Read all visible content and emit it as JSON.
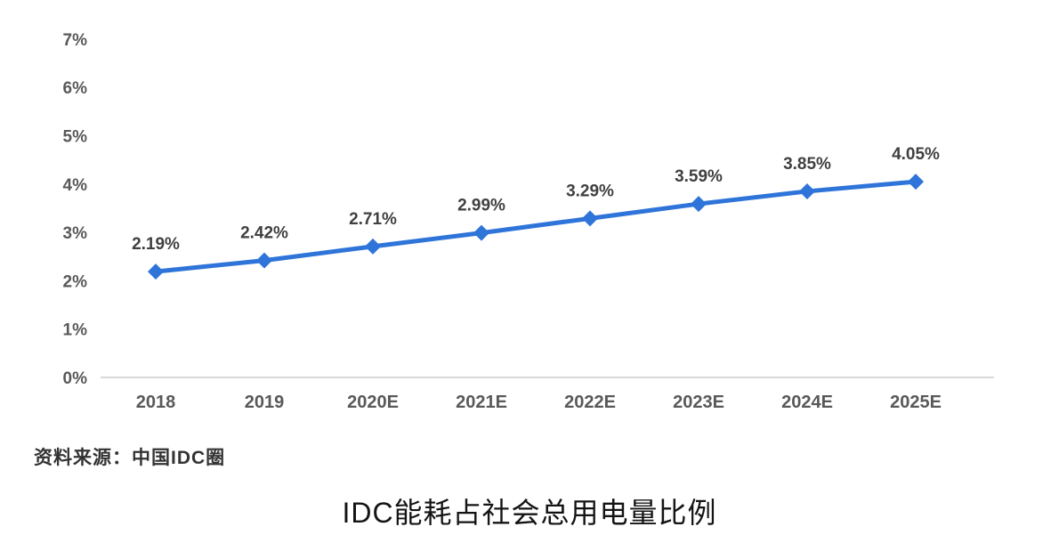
{
  "chart_data": {
    "type": "line",
    "title": "IDC能耗占社会总用电量比例",
    "source": "资料来源：中国IDC圈",
    "categories": [
      "2018",
      "2019",
      "2020E",
      "2021E",
      "2022E",
      "2023E",
      "2024E",
      "2025E"
    ],
    "series": [
      {
        "name": "IDC能耗占社会总用电量比例",
        "values": [
          2.19,
          2.42,
          2.71,
          2.99,
          3.29,
          3.59,
          3.85,
          4.05
        ]
      }
    ],
    "data_labels": [
      "2.19%",
      "2.42%",
      "2.71%",
      "2.99%",
      "3.29%",
      "3.59%",
      "3.85%",
      "4.05%"
    ],
    "ytick_labels": [
      "0%",
      "1%",
      "2%",
      "3%",
      "4%",
      "5%",
      "6%",
      "7%"
    ],
    "yticks": [
      0,
      1,
      2,
      3,
      4,
      5,
      6,
      7
    ],
    "ylim": [
      0,
      7
    ],
    "xlabel": "",
    "ylabel": "",
    "grid": false,
    "legend_position": "none",
    "marker": "diamond",
    "line_color": "#2E74D9",
    "marker_color": "#2E74D9",
    "data_label_color": "#404040",
    "tick_label_color": "#595959",
    "baseline_color": "#D9D9D9",
    "background_color": "#FFFFFF"
  }
}
